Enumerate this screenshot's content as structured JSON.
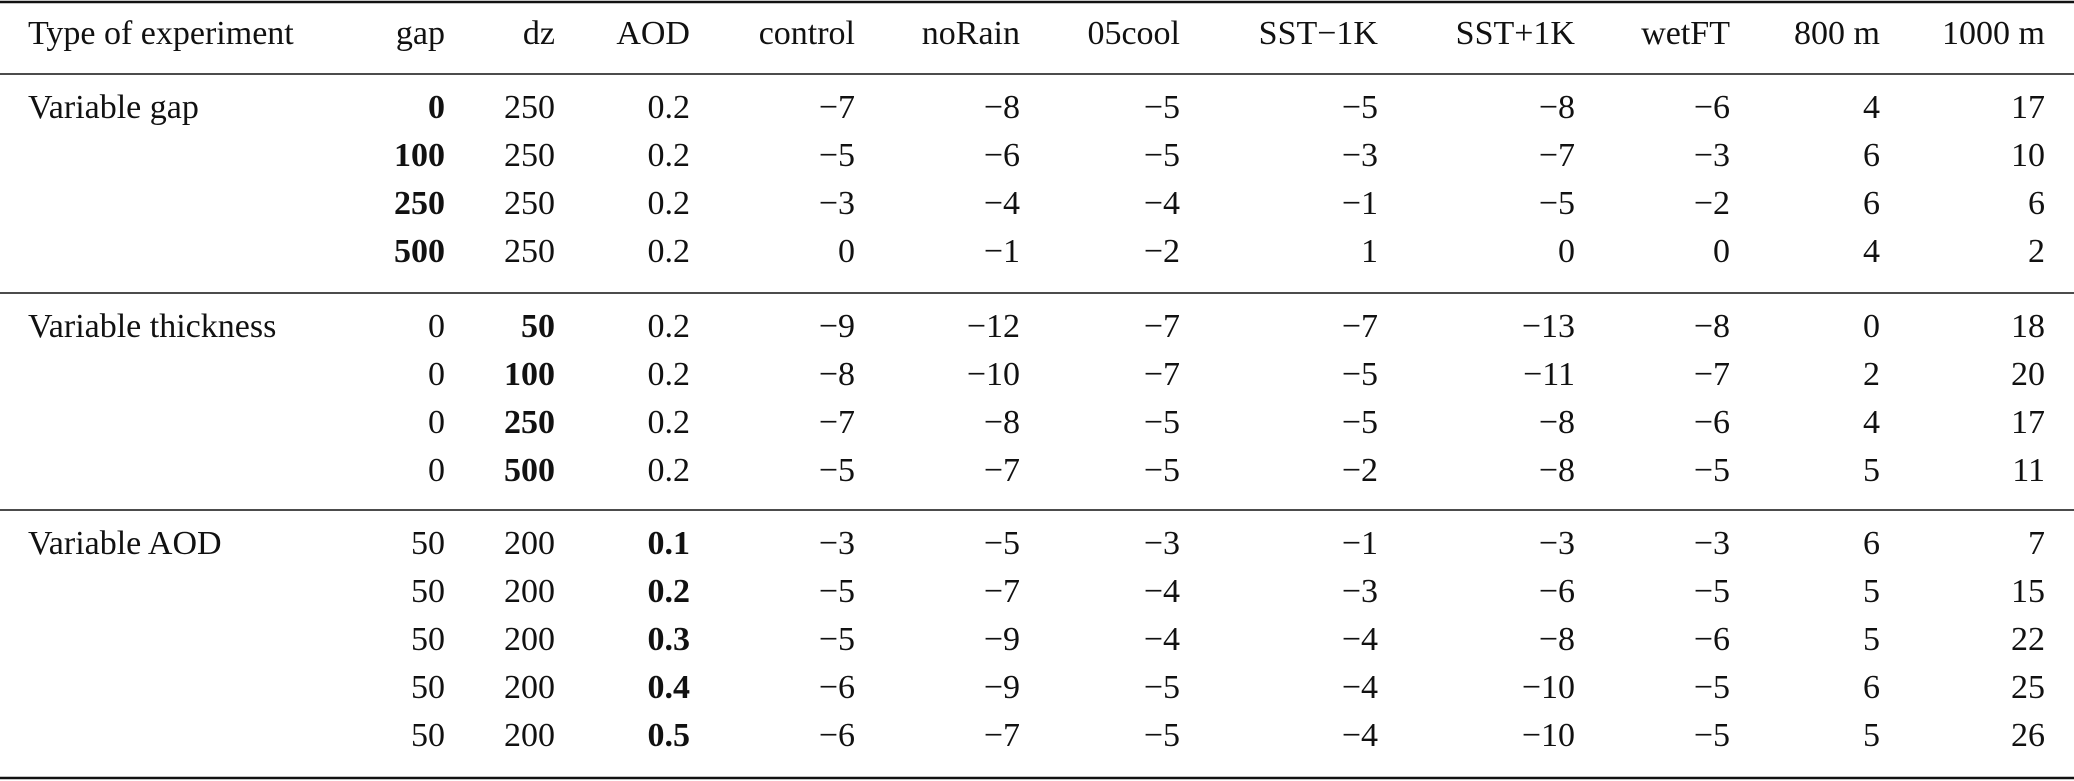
{
  "table": {
    "header": [
      "Type of experiment",
      "gap",
      "dz",
      "AOD",
      "control",
      "noRain",
      "05cool",
      "SST−1K",
      "SST+1K",
      "wetFT",
      "800 m",
      "1000 m"
    ],
    "groups": [
      {
        "label": "Variable gap",
        "bold_column": 0,
        "rows": [
          [
            "0",
            "250",
            "0.2",
            "−7",
            "−8",
            "−5",
            "−5",
            "−8",
            "−6",
            "4",
            "17"
          ],
          [
            "100",
            "250",
            "0.2",
            "−5",
            "−6",
            "−5",
            "−3",
            "−7",
            "−3",
            "6",
            "10"
          ],
          [
            "250",
            "250",
            "0.2",
            "−3",
            "−4",
            "−4",
            "−1",
            "−5",
            "−2",
            "6",
            "6"
          ],
          [
            "500",
            "250",
            "0.2",
            "0",
            "−1",
            "−2",
            "1",
            "0",
            "0",
            "4",
            "2"
          ]
        ]
      },
      {
        "label": "Variable thickness",
        "bold_column": 1,
        "rows": [
          [
            "0",
            "50",
            "0.2",
            "−9",
            "−12",
            "−7",
            "−7",
            "−13",
            "−8",
            "0",
            "18"
          ],
          [
            "0",
            "100",
            "0.2",
            "−8",
            "−10",
            "−7",
            "−5",
            "−11",
            "−7",
            "2",
            "20"
          ],
          [
            "0",
            "250",
            "0.2",
            "−7",
            "−8",
            "−5",
            "−5",
            "−8",
            "−6",
            "4",
            "17"
          ],
          [
            "0",
            "500",
            "0.2",
            "−5",
            "−7",
            "−5",
            "−2",
            "−8",
            "−5",
            "5",
            "11"
          ]
        ]
      },
      {
        "label": "Variable AOD",
        "bold_column": 2,
        "rows": [
          [
            "50",
            "200",
            "0.1",
            "−3",
            "−5",
            "−3",
            "−1",
            "−3",
            "−3",
            "6",
            "7"
          ],
          [
            "50",
            "200",
            "0.2",
            "−5",
            "−7",
            "−4",
            "−3",
            "−6",
            "−5",
            "5",
            "15"
          ],
          [
            "50",
            "200",
            "0.3",
            "−5",
            "−9",
            "−4",
            "−4",
            "−8",
            "−6",
            "5",
            "22"
          ],
          [
            "50",
            "200",
            "0.4",
            "−6",
            "−9",
            "−5",
            "−4",
            "−10",
            "−5",
            "6",
            "25"
          ],
          [
            "50",
            "200",
            "0.5",
            "−6",
            "−7",
            "−5",
            "−4",
            "−10",
            "−5",
            "5",
            "26"
          ]
        ]
      }
    ]
  }
}
